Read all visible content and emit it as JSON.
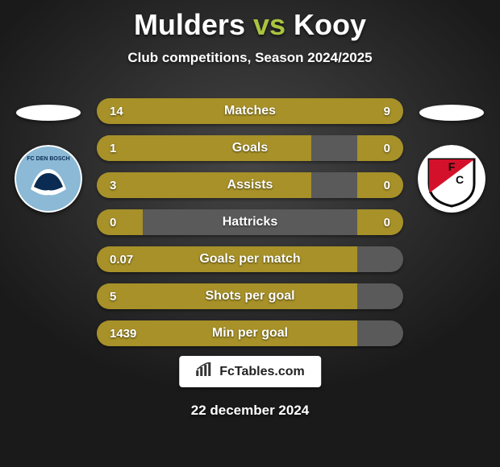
{
  "vs_title_color": "#a9c440",
  "bar_color_left": "#a79128",
  "bar_color_right": "#a79128",
  "header": {
    "player_left": "Mulders",
    "vs": "vs",
    "player_right": "Kooy",
    "subtitle": "Club competitions, Season 2024/2025"
  },
  "clubs": {
    "left": {
      "name": "FC Den Bosch",
      "crest_bg": "#ffffff",
      "crest_primary": "#8bb9d6",
      "crest_secondary": "#0a2b52"
    },
    "right": {
      "name": "FC Utrecht",
      "crest_bg": "#ffffff",
      "crest_primary": "#d4112b",
      "crest_secondary": "#0a0a0a"
    }
  },
  "stats": [
    {
      "label": "Matches",
      "left_text": "14",
      "right_text": "9",
      "left_pct": 61,
      "right_pct": 39
    },
    {
      "label": "Goals",
      "left_text": "1",
      "right_text": "0",
      "left_pct": 70,
      "right_pct": 15
    },
    {
      "label": "Assists",
      "left_text": "3",
      "right_text": "0",
      "left_pct": 70,
      "right_pct": 15
    },
    {
      "label": "Hattricks",
      "left_text": "0",
      "right_text": "0",
      "left_pct": 15,
      "right_pct": 15
    },
    {
      "label": "Goals per match",
      "left_text": "0.07",
      "right_text": "",
      "left_pct": 85,
      "right_pct": 0
    },
    {
      "label": "Shots per goal",
      "left_text": "5",
      "right_text": "",
      "left_pct": 85,
      "right_pct": 0
    },
    {
      "label": "Min per goal",
      "left_text": "1439",
      "right_text": "",
      "left_pct": 85,
      "right_pct": 0
    }
  ],
  "brand_text": "FcTables.com",
  "date_text": "22 december 2024"
}
